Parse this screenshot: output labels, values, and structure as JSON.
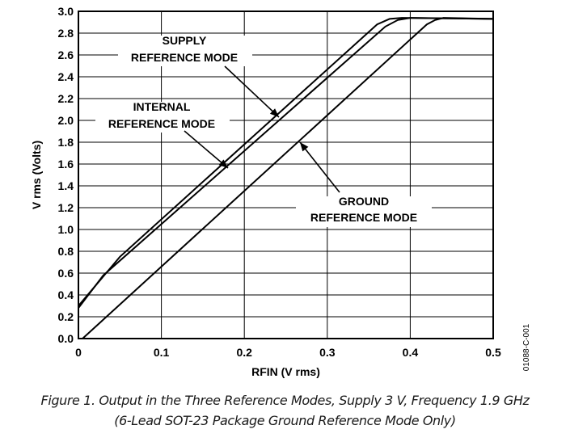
{
  "chart_data": {
    "type": "line",
    "xlabel": "RFIN (V rms)",
    "ylabel": "V rms (Volts)",
    "xlim": [
      0,
      0.5
    ],
    "ylim": [
      0,
      3.0
    ],
    "x_ticks": [
      0,
      0.1,
      0.2,
      0.3,
      0.4,
      0.5
    ],
    "x_tick_labels": [
      "0",
      "0.1",
      "0.2",
      "0.3",
      "0.4",
      "0.5"
    ],
    "y_ticks": [
      0,
      0.2,
      0.4,
      0.6,
      0.8,
      1.0,
      1.2,
      1.4,
      1.6,
      1.8,
      2.0,
      2.2,
      2.4,
      2.6,
      2.8,
      3.0
    ],
    "y_tick_labels": [
      "0.0",
      "0.2",
      "0.4",
      "0.6",
      "0.8",
      "1.0",
      "1.2",
      "1.4",
      "1.6",
      "1.8",
      "2.0",
      "2.2",
      "2.4",
      "2.6",
      "2.8",
      "3.0"
    ],
    "grid": true,
    "series": [
      {
        "name": "SUPPLY REFERENCE MODE",
        "x": [
          0,
          0.05,
          0.36,
          0.375,
          0.39,
          0.5
        ],
        "y": [
          0.3,
          0.75,
          2.88,
          2.93,
          2.94,
          2.93
        ]
      },
      {
        "name": "INTERNAL REFERENCE MODE",
        "x": [
          0,
          0.03,
          0.37,
          0.385,
          0.4,
          0.5
        ],
        "y": [
          0.28,
          0.58,
          2.86,
          2.92,
          2.94,
          2.93
        ]
      },
      {
        "name": "GROUND REFERENCE MODE",
        "x": [
          0.005,
          0.42,
          0.43,
          0.44,
          0.5
        ],
        "y": [
          0.0,
          2.88,
          2.92,
          2.94,
          2.93
        ]
      }
    ],
    "annotations": [
      {
        "lines": [
          "SUPPLY",
          "REFERENCE MODE"
        ]
      },
      {
        "lines": [
          "INTERNAL",
          "REFERENCE MODE"
        ]
      },
      {
        "lines": [
          "GROUND",
          "REFERENCE MODE"
        ]
      }
    ]
  },
  "figure_code": "01088-C-001",
  "caption": {
    "line1": "Figure 1. Output in the Three Reference Modes, Supply 3 V, Frequency 1.9 GHz",
    "line2": "(6-Lead SOT-23 Package Ground Reference Mode Only)"
  }
}
